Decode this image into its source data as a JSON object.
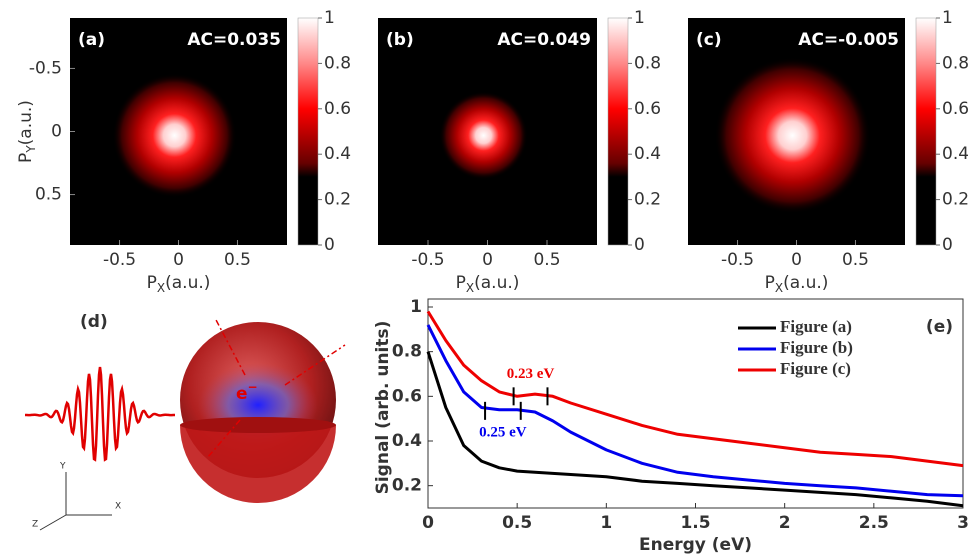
{
  "chart_data": [
    {
      "type": "heatmap",
      "panel": "(a)",
      "annotation": "AC=0.035",
      "xlabel": {
        "main": "P",
        "sub": "X",
        "rest": "(a.u.)"
      },
      "ylabel": {
        "main": "P",
        "sub": "Y",
        "rest": "(a.u.)"
      },
      "xlim": [
        -0.92,
        0.92
      ],
      "ylim": [
        0.9,
        -0.9
      ],
      "xticks": [
        -0.5,
        0,
        0.5
      ],
      "yticks": [
        -0.5,
        0,
        0.5
      ],
      "clim": [
        0,
        1
      ],
      "cticks": [
        0,
        0.2,
        0.4,
        0.6,
        0.8,
        1
      ]
    },
    {
      "type": "heatmap",
      "panel": "(b)",
      "annotation": "AC=0.049",
      "xlabel": {
        "main": "P",
        "sub": "X",
        "rest": "(a.u.)"
      },
      "xlim": [
        -0.92,
        0.92
      ],
      "ylim": [
        0.9,
        -0.9
      ],
      "xticks": [
        -0.5,
        0,
        0.5
      ],
      "clim": [
        0,
        1
      ],
      "cticks": [
        0,
        0.2,
        0.4,
        0.6,
        0.8,
        1
      ]
    },
    {
      "type": "heatmap",
      "panel": "(c)",
      "annotation": "AC=-0.005",
      "xlabel": {
        "main": "P",
        "sub": "X",
        "rest": "(a.u.)"
      },
      "xlim": [
        -0.92,
        0.92
      ],
      "ylim": [
        0.9,
        -0.9
      ],
      "xticks": [
        -0.5,
        0,
        0.5
      ],
      "clim": [
        0,
        1
      ],
      "cticks": [
        0,
        0.2,
        0.4,
        0.6,
        0.8,
        1
      ]
    },
    {
      "type": "line",
      "panel": "(e)",
      "xlabel": "Energy (eV)",
      "ylabel": "Signal (arb. units)",
      "x": [
        0,
        0.1,
        0.2,
        0.3,
        0.4,
        0.5,
        0.6,
        0.7,
        0.8,
        1,
        1.2,
        1.4,
        1.6,
        1.8,
        2,
        2.2,
        2.4,
        2.6,
        2.8,
        3
      ],
      "series": [
        {
          "name": "Figure (a)",
          "color": "#000000",
          "values": [
            0.8,
            0.55,
            0.38,
            0.31,
            0.28,
            0.265,
            0.26,
            0.255,
            0.25,
            0.24,
            0.22,
            0.21,
            0.2,
            0.19,
            0.18,
            0.17,
            0.16,
            0.145,
            0.13,
            0.11
          ]
        },
        {
          "name": "Figure (b)",
          "color": "#0000ee",
          "values": [
            0.92,
            0.76,
            0.62,
            0.55,
            0.54,
            0.54,
            0.53,
            0.49,
            0.44,
            0.36,
            0.3,
            0.26,
            0.24,
            0.225,
            0.21,
            0.2,
            0.19,
            0.175,
            0.16,
            0.155
          ]
        },
        {
          "name": "Figure (c)",
          "color": "#ee0000",
          "values": [
            0.98,
            0.85,
            0.74,
            0.67,
            0.62,
            0.6,
            0.61,
            0.6,
            0.57,
            0.52,
            0.47,
            0.43,
            0.41,
            0.39,
            0.37,
            0.35,
            0.34,
            0.33,
            0.31,
            0.29
          ]
        }
      ],
      "annotations": [
        {
          "label": "0.23 eV",
          "color": "#ee0000",
          "x": [
            0.48,
            0.67
          ],
          "y": 0.6,
          "position": "above"
        },
        {
          "label": "0.25 eV",
          "color": "#0000ee",
          "x": [
            0.32,
            0.52
          ],
          "y": 0.535,
          "position": "below"
        }
      ],
      "xlim": [
        0,
        3
      ],
      "ylim": [
        0.1,
        1.0
      ],
      "xticks": [
        0,
        0.5,
        1,
        1.5,
        2,
        2.5,
        3
      ],
      "yticks": [
        0.2,
        0.4,
        0.6,
        0.8,
        1
      ],
      "legend": "upper right"
    }
  ],
  "diagram": {
    "panel": "(d)",
    "electron": "e",
    "charge": "−",
    "axes": [
      "Y",
      "X",
      "Z"
    ]
  }
}
